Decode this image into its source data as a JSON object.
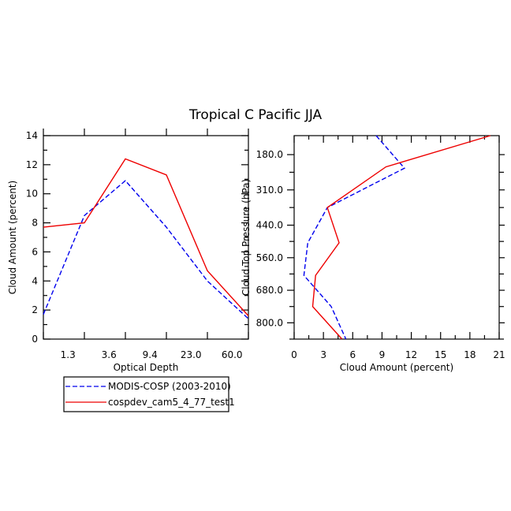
{
  "title": "Tropical C Pacific JJA",
  "colors": {
    "modis": "#0000ee",
    "cosp": "#ee0000"
  },
  "legend": {
    "placement": "bottom-left",
    "entries": [
      {
        "label": "MODIS-COSP (2003-2010)",
        "color": "#0000ee",
        "style": "dashed"
      },
      {
        "label": "cospdev_cam5_4_77_test1",
        "color": "#ee0000",
        "style": "solid"
      }
    ]
  },
  "chart_data": [
    {
      "type": "line",
      "xlabel": "Optical Depth",
      "ylabel": "Cloud Amount (percent)",
      "x_tick_labels": [
        "1.3",
        "3.6",
        "9.4",
        "23.0",
        "60.0"
      ],
      "y_ticks": [
        0,
        2,
        4,
        6,
        8,
        10,
        12,
        14
      ],
      "ylim": [
        0,
        14
      ],
      "x_bin_index": [
        0,
        1,
        2,
        3,
        4,
        5
      ],
      "series": [
        {
          "name": "MODIS-COSP (2003-2010)",
          "color": "#0000ee",
          "style": "dashed",
          "values": [
            1.7,
            8.5,
            10.9,
            7.7,
            4.0,
            1.4
          ]
        },
        {
          "name": "cospdev_cam5_4_77_test1",
          "color": "#ee0000",
          "style": "solid",
          "values": [
            7.7,
            8.0,
            12.4,
            11.3,
            4.7,
            1.6
          ]
        }
      ]
    },
    {
      "type": "line",
      "xlabel": "Cloud Amount (percent)",
      "ylabel": "Cloud Top Pressure (hPa)",
      "x_ticks": [
        0,
        3,
        6,
        9,
        12,
        15,
        18,
        21
      ],
      "xlim": [
        0,
        21
      ],
      "y_tick_labels": [
        "180.0",
        "310.0",
        "440.0",
        "560.0",
        "680.0",
        "800.0"
      ],
      "y_ticks": [
        180,
        310,
        440,
        560,
        680,
        800
      ],
      "ylim": [
        860,
        110
      ],
      "series": [
        {
          "name": "MODIS-COSP (2003-2010)",
          "color": "#0000ee",
          "style": "dashed",
          "x": [
            8.4,
            11.3,
            3.4,
            1.4,
            1.0,
            3.8,
            5.3
          ],
          "y": [
            110,
            230,
            375,
            505,
            625,
            740,
            860
          ]
        },
        {
          "name": "cospdev_cam5_4_77_test1",
          "color": "#ee0000",
          "style": "solid",
          "x": [
            20.1,
            9.4,
            3.4,
            4.6,
            2.2,
            1.9,
            4.9
          ],
          "y": [
            110,
            225,
            375,
            505,
            625,
            740,
            860
          ]
        }
      ]
    }
  ]
}
